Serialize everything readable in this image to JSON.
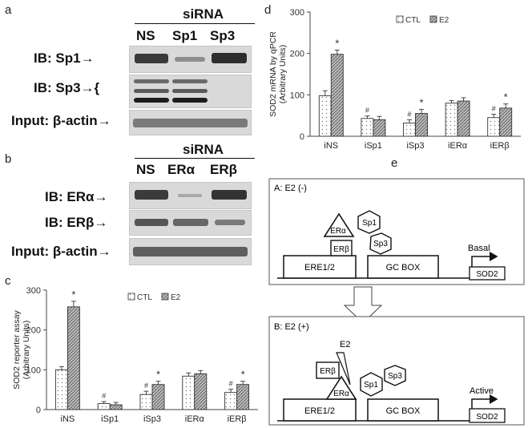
{
  "panel_a": {
    "letter": "a",
    "sirna": "siRNA",
    "lanes": [
      "NS",
      "Sp1",
      "Sp3"
    ],
    "rows": [
      "IB: Sp1→",
      "IB: Sp3→{",
      "Input: β-actin→"
    ]
  },
  "panel_b": {
    "letter": "b",
    "sirna": "siRNA",
    "lanes": [
      "NS",
      "ERα",
      "ERβ"
    ],
    "rows": [
      "IB:  ERα→",
      "IB: ERβ→",
      "Input: β-actin→"
    ]
  },
  "panel_c": {
    "letter": "c"
  },
  "panel_d": {
    "letter": "d"
  },
  "panel_e": {
    "letter": "e",
    "box_a": {
      "title": "A: E2 (-)",
      "ere": "ERE1/2",
      "gc": "GC BOX",
      "gene": "SOD2",
      "arrow_label": "Basal",
      "factors": [
        "ERα",
        "ERβ",
        "Sp1",
        "Sp3"
      ]
    },
    "box_b": {
      "title": "B: E2 (+)",
      "ere": "ERE1/2",
      "gc": "GC BOX",
      "gene": "SOD2",
      "arrow_label": "Active",
      "ligand": "E2",
      "factors": [
        "ERβ",
        "ERα",
        "Sp1",
        "Sp3"
      ]
    }
  },
  "chart_data": [
    {
      "type": "bar",
      "panel": "c",
      "ylabel": "SOD2 reporter assay\n(Arbitrary Units)",
      "xlabel": "",
      "ylim": [
        0,
        300
      ],
      "yticks": [
        0,
        100,
        200,
        300
      ],
      "categories": [
        "iNS",
        "iSp1",
        "iSp3",
        "iERα",
        "iERβ"
      ],
      "series": [
        {
          "name": "CTL",
          "values": [
            100,
            15,
            38,
            84,
            43
          ],
          "errors": [
            8,
            5,
            8,
            8,
            8
          ],
          "marks": [
            "",
            "#",
            "#",
            "",
            "#"
          ],
          "pattern": "dots"
        },
        {
          "name": "E2",
          "values": [
            258,
            12,
            63,
            90,
            63
          ],
          "errors": [
            14,
            6,
            8,
            8,
            8
          ],
          "marks": [
            "*",
            "",
            "*",
            "",
            "*"
          ],
          "pattern": "hatch"
        }
      ],
      "legend": "top-right"
    },
    {
      "type": "bar",
      "panel": "d",
      "ylabel": "SOD2 mRNA by qPCR\n(Arbitrary Units)",
      "xlabel": "",
      "ylim": [
        0,
        300
      ],
      "yticks": [
        0,
        100,
        200,
        300
      ],
      "categories": [
        "iNS",
        "iSp1",
        "iSp3",
        "iERα",
        "iERβ"
      ],
      "series": [
        {
          "name": "CTL",
          "values": [
            98,
            43,
            32,
            80,
            45
          ],
          "errors": [
            12,
            6,
            8,
            6,
            8
          ],
          "marks": [
            "",
            "#",
            "#",
            "",
            "#"
          ],
          "pattern": "dots"
        },
        {
          "name": "E2",
          "values": [
            198,
            40,
            55,
            85,
            68
          ],
          "errors": [
            10,
            8,
            10,
            8,
            10
          ],
          "marks": [
            "*",
            "",
            "*",
            "",
            "*"
          ],
          "pattern": "hatch"
        }
      ],
      "legend": "top-right"
    }
  ]
}
